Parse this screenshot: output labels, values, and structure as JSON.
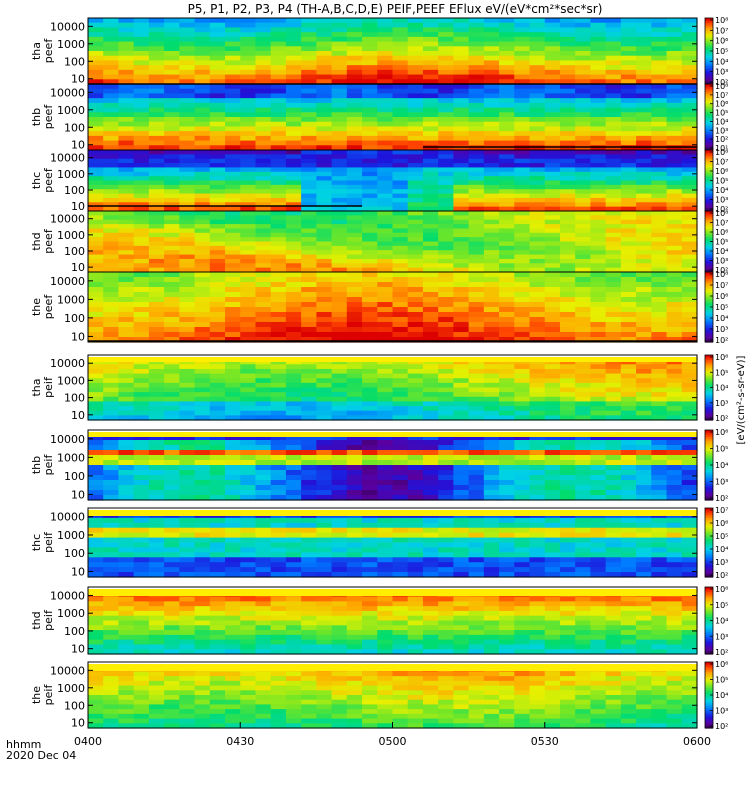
{
  "chart_data": {
    "type": "heatmap",
    "title": "P5, P1, P2, P3, P4 (TH-A,B,C,D,E) PEIF,PEEF EFlux eV/(eV*cm²*sec*sr)",
    "xlabel": "hhmm",
    "date": "2020 Dec 04",
    "x_ticks": [
      "0400",
      "0430",
      "0500",
      "0530",
      "0600"
    ],
    "xlim": [
      "04:00",
      "06:00"
    ],
    "y_ticks": [
      "10",
      "100",
      "1000",
      "10000"
    ],
    "ylim": [
      5,
      30000
    ],
    "colorbar_label": "[eV/(cm²-s-sr-eV)]",
    "panels": [
      {
        "label": "tha peef",
        "species": "electron",
        "zlim": [
          100.0,
          100000000.0
        ],
        "cbar_ticks": [
          "10²",
          "10³",
          "10⁴",
          "10⁵",
          "10⁶",
          "10⁷",
          "10⁸"
        ]
      },
      {
        "label": "thb peef",
        "species": "electron",
        "zlim": [
          10.0,
          100000000.0
        ],
        "cbar_ticks": [
          "10¹",
          "10²",
          "10³",
          "10⁴",
          "10⁵",
          "10⁶",
          "10⁷",
          "10⁸"
        ]
      },
      {
        "label": "thc peef",
        "species": "electron",
        "zlim": [
          100.0,
          100000000.0
        ],
        "cbar_ticks": [
          "10²",
          "10³",
          "10⁴",
          "10⁵",
          "10⁶",
          "10⁷",
          "10⁸"
        ]
      },
      {
        "label": "thd peef",
        "species": "electron",
        "zlim": [
          100.0,
          100000000.0
        ],
        "cbar_ticks": [
          "10²",
          "10³",
          "10⁴",
          "10⁵",
          "10⁶",
          "10⁷",
          "10⁸"
        ]
      },
      {
        "label": "the peef",
        "species": "electron",
        "zlim": [
          100.0,
          100000000.0
        ],
        "cbar_ticks": [
          "10²",
          "10³",
          "10⁴",
          "10⁵",
          "10⁶",
          "10⁷",
          "10⁸"
        ]
      },
      {
        "label": "tha peif",
        "species": "ion",
        "zlim": [
          100.0,
          1000000.0
        ],
        "cbar_ticks": [
          "10²",
          "10³",
          "10⁴",
          "10⁵",
          "10⁶"
        ]
      },
      {
        "label": "thb peif",
        "species": "ion",
        "zlim": [
          100.0,
          1000000.0
        ],
        "cbar_ticks": [
          "10²",
          "10³",
          "10⁴",
          "10⁵",
          "10⁶"
        ]
      },
      {
        "label": "thc peif",
        "species": "ion",
        "zlim": [
          100.0,
          10000000.0
        ],
        "cbar_ticks": [
          "10²",
          "10³",
          "10⁴",
          "10⁵",
          "10⁶",
          "10⁷"
        ]
      },
      {
        "label": "thd peif",
        "species": "ion",
        "zlim": [
          100.0,
          1000000.0
        ],
        "cbar_ticks": [
          "10²",
          "10³",
          "10⁴",
          "10⁵",
          "10⁶"
        ]
      },
      {
        "label": "the peif",
        "species": "ion",
        "zlim": [
          100.0,
          1000000.0
        ],
        "cbar_ticks": [
          "10²",
          "10³",
          "10⁴",
          "10⁵",
          "10⁶"
        ]
      }
    ]
  }
}
